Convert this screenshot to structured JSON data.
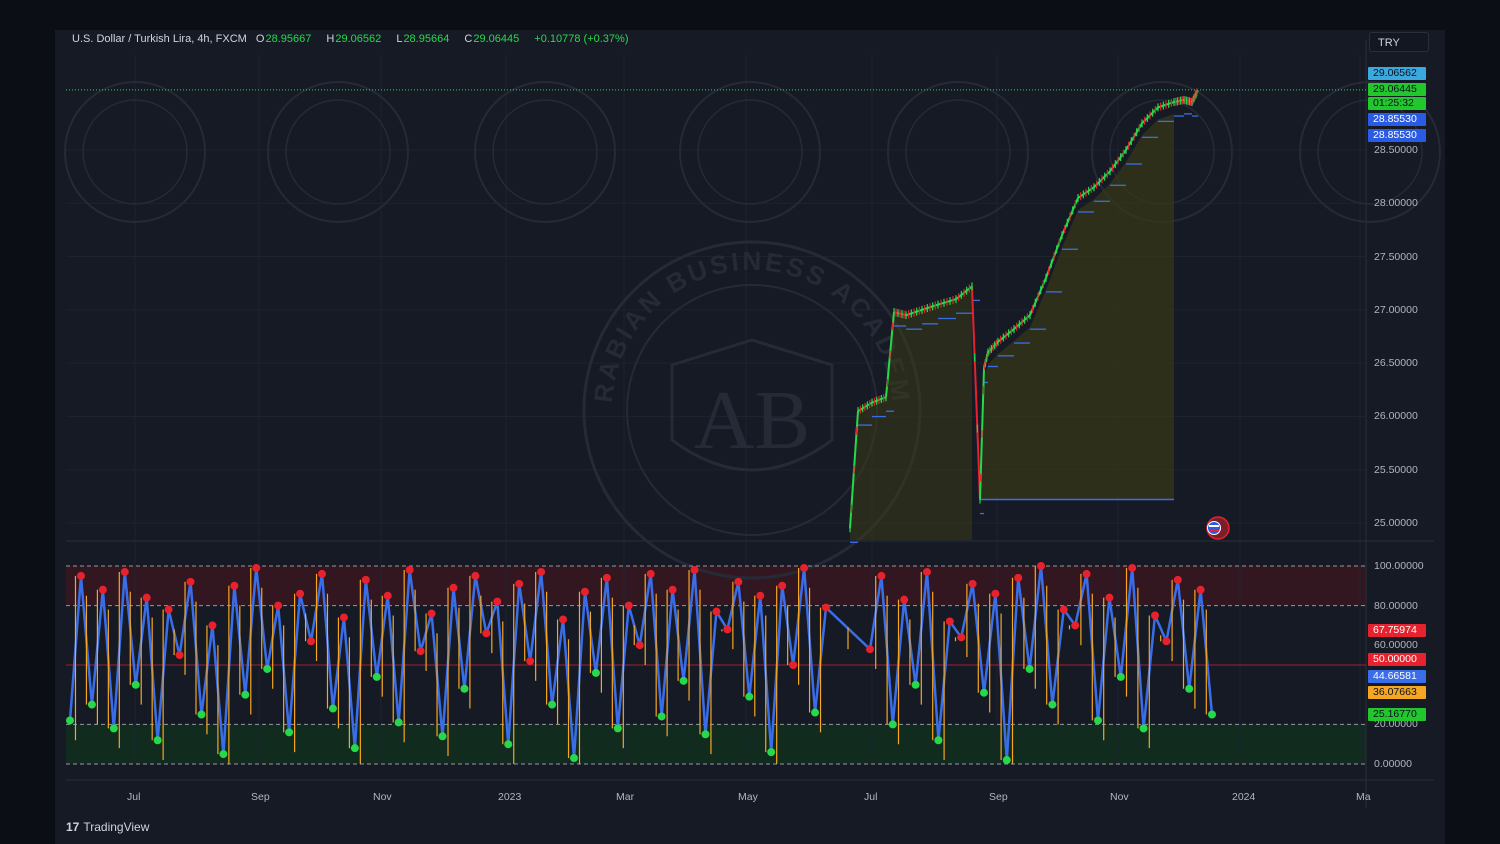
{
  "legend": {
    "symbol": "U.S. Dollar / Turkish Lira, 4h, FXCM",
    "o_label": "O",
    "o": "28.95667",
    "h_label": "H",
    "h": "29.06562",
    "l_label": "L",
    "l": "28.95664",
    "c_label": "C",
    "c": "29.06445",
    "change": "+0.10778 (+0.37%)"
  },
  "currency_button": "TRY",
  "price_tags": [
    {
      "text": "29.06562",
      "bg": "#3aa9e0",
      "fg": "#0b1020"
    },
    {
      "text": "29.06445",
      "bg": "#22c72c",
      "fg": "#0b1020"
    },
    {
      "text": "01:25:32",
      "bg": "#22c72c",
      "fg": "#0b1020"
    },
    {
      "text": "28.85530",
      "bg": "#2a5be5",
      "fg": "#ffffff"
    },
    {
      "text": "28.85530",
      "bg": "#2a5be5",
      "fg": "#ffffff"
    }
  ],
  "price_axis_labels": [
    "28.50000",
    "28.00000",
    "27.50000",
    "27.00000",
    "26.50000",
    "26.00000",
    "25.50000",
    "25.00000"
  ],
  "oscillator_axis_labels": [
    "100.00000",
    "80.00000",
    "60.00000",
    "20.00000",
    "0.00000"
  ],
  "oscillator_tags": [
    {
      "text": "67.75974",
      "bg": "#e5222d",
      "fg": "#ffffff"
    },
    {
      "text": "50.00000",
      "bg": "#e5222d",
      "fg": "#ffffff"
    },
    {
      "text": "44.66581",
      "bg": "#3a6ee8",
      "fg": "#ffffff"
    },
    {
      "text": "36.07663",
      "bg": "#f5a623",
      "fg": "#0b1020"
    },
    {
      "text": "25.16770",
      "bg": "#22c72c",
      "fg": "#0b1020"
    }
  ],
  "time_axis_labels": [
    "Jul",
    "Sep",
    "Nov",
    "2023",
    "Mar",
    "May",
    "Jul",
    "Sep",
    "Nov",
    "2024",
    "Ma"
  ],
  "brand": {
    "logo": "17",
    "name": "TradingView"
  },
  "watermark": {
    "initials": "AB",
    "text": "ARABIAN BUSINESS ACADEMY"
  },
  "colors": {
    "up": "#26d94a",
    "down": "#e5222d",
    "support": "#3a6ee8",
    "osc_line": "#3a6ee8",
    "osc_alt": "#f5a623",
    "overbought_zone": "#3a1720",
    "oversold_zone": "#12301e"
  },
  "chart_data": [
    {
      "type": "line",
      "series": [
        {
          "x": [
            "2023-06-20",
            "2023-06-24",
            "2023-07-01",
            "2023-07-08",
            "2023-07-12",
            "2023-07-18",
            "2023-07-26",
            "2023-08-03",
            "2023-08-12",
            "2023-08-20",
            "2023-08-24",
            "2023-08-26",
            "2023-08-28",
            "2023-09-02",
            "2023-09-10",
            "2023-09-18",
            "2023-09-26",
            "2023-10-04",
            "2023-10-12",
            "2023-10-20",
            "2023-10-28",
            "2023-11-05",
            "2023-11-13",
            "2023-11-21",
            "2023-11-29",
            "2023-12-04",
            "2023-12-08",
            "2023-12-11"
          ],
          "y": [
            24.95,
            26.05,
            26.13,
            26.18,
            26.98,
            26.95,
            27.0,
            27.05,
            27.1,
            27.22,
            25.22,
            26.45,
            26.6,
            26.7,
            26.82,
            26.95,
            27.3,
            27.7,
            28.05,
            28.15,
            28.3,
            28.5,
            28.75,
            28.9,
            28.95,
            28.97,
            28.95,
            29.06
          ]
        }
      ],
      "ylim": [
        24.85,
        29.2
      ]
    },
    {
      "type": "line",
      "series": [
        {
          "values": [
            22,
            95,
            30,
            88,
            18,
            97,
            40,
            84,
            12,
            78,
            55,
            92,
            25,
            70,
            5,
            90,
            35,
            99,
            48,
            80,
            16,
            86,
            62,
            96,
            28,
            74,
            8,
            93,
            44,
            85,
            21,
            98,
            57,
            76,
            14,
            89,
            38,
            95,
            66,
            82,
            10,
            91,
            52,
            97,
            30,
            73,
            3,
            87,
            46,
            94,
            18,
            80,
            60,
            96,
            24,
            88,
            42,
            98,
            15,
            77,
            68,
            92,
            34,
            85,
            6,
            90,
            50,
            99,
            26,
            79,
            58,
            95,
            20,
            83,
            40,
            97,
            12,
            72,
            64,
            91,
            36,
            86,
            2,
            94,
            48,
            100,
            30,
            78,
            70,
            96,
            22,
            84,
            44,
            99,
            18,
            75,
            62,
            93,
            38,
            88,
            25
          ]
        }
      ],
      "ylim": [
        0,
        100
      ],
      "bands": [
        80,
        50,
        20
      ]
    }
  ]
}
